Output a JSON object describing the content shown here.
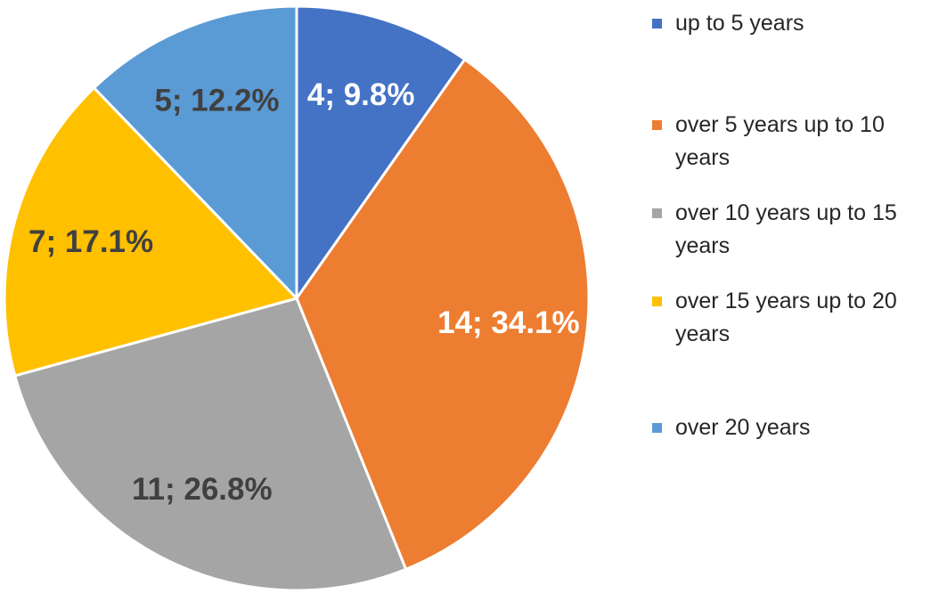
{
  "chart_data": {
    "type": "pie",
    "start_angle_deg": 0,
    "direction": "clockwise",
    "legend_position": "right",
    "slices": [
      {
        "name": "up to 5 years",
        "value": 4,
        "percent": 9.8,
        "label": "4; 9.8%",
        "color": "#4472C4",
        "label_color": "#FFFFFF"
      },
      {
        "name": "over 5 years up to 10 years",
        "value": 14,
        "percent": 34.1,
        "label": "14; 34.1%",
        "color": "#ED7D31",
        "label_color": "#FFFFFF"
      },
      {
        "name": "over 10 years up to 15 years",
        "value": 11,
        "percent": 26.8,
        "label": "11; 26.8%",
        "color": "#A5A5A5",
        "label_color": "#404040"
      },
      {
        "name": "over 15 years up to 20 years",
        "value": 7,
        "percent": 17.1,
        "label": "7; 17.1%",
        "color": "#FFC000",
        "label_color": "#404040"
      },
      {
        "name": "over 20 years",
        "value": 5,
        "percent": 12.2,
        "label": "5; 12.2%",
        "color": "#5B9BD5",
        "label_color": "#404040"
      }
    ]
  }
}
